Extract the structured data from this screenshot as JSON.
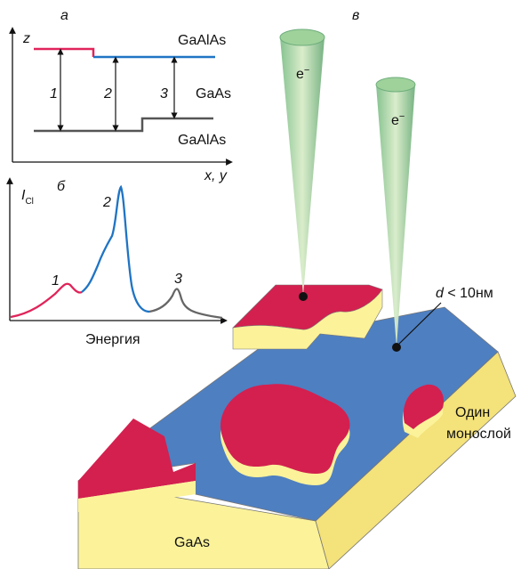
{
  "panel_a": {
    "label": "а",
    "y_axis": "z",
    "x_axis": "x, y",
    "layers": [
      "GaAlAs",
      "GaAs",
      "GaAlAs"
    ],
    "transitions": [
      "1",
      "2",
      "3"
    ]
  },
  "panel_b": {
    "label": "б",
    "y_axis": "I",
    "y_axis_sub": "Cl",
    "peaks": [
      "1",
      "2",
      "3"
    ],
    "x_axis": "Энергия"
  },
  "panel_c": {
    "label": "в",
    "beams": [
      {
        "symbol": "e",
        "charge": "−"
      },
      {
        "symbol": "e",
        "charge": "−"
      }
    ],
    "size_label": {
      "d": "d",
      "rest": " < 10нм"
    },
    "monolayer": [
      "Один",
      "монослой"
    ],
    "substrate": "GaAs"
  }
}
